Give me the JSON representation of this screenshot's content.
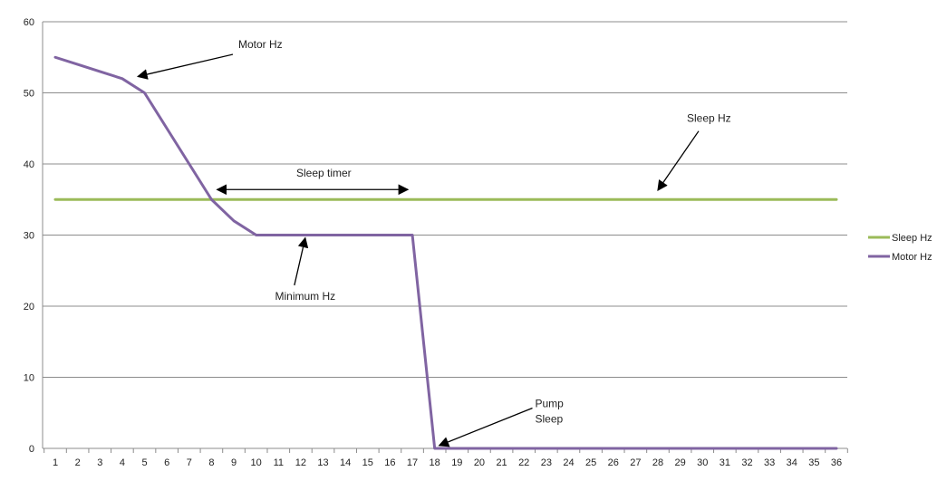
{
  "chart_data": {
    "type": "line",
    "title": "",
    "xlabel": "",
    "ylabel": "",
    "categories": [
      1,
      2,
      3,
      4,
      5,
      6,
      7,
      8,
      9,
      10,
      11,
      12,
      13,
      14,
      15,
      16,
      17,
      18,
      19,
      20,
      21,
      22,
      23,
      24,
      25,
      26,
      27,
      28,
      29,
      30,
      31,
      32,
      33,
      34,
      35,
      36
    ],
    "ylim": [
      0,
      60
    ],
    "yticks": [
      0,
      10,
      20,
      30,
      40,
      50,
      60
    ],
    "grid": "horizontal",
    "legend_position": "right",
    "series": [
      {
        "name": "Sleep Hz",
        "color": "#9bbb59",
        "values": [
          35,
          35,
          35,
          35,
          35,
          35,
          35,
          35,
          35,
          35,
          35,
          35,
          35,
          35,
          35,
          35,
          35,
          35,
          35,
          35,
          35,
          35,
          35,
          35,
          35,
          35,
          35,
          35,
          35,
          35,
          35,
          35,
          35,
          35,
          35,
          35
        ]
      },
      {
        "name": "Motor Hz",
        "color": "#8064a2",
        "values": [
          55,
          54,
          53,
          52,
          50,
          45,
          40,
          35,
          32,
          30,
          30,
          30,
          30,
          30,
          30,
          30,
          30,
          0,
          0,
          0,
          0,
          0,
          0,
          0,
          0,
          0,
          0,
          0,
          0,
          0,
          0,
          0,
          0,
          0,
          0,
          0
        ]
      }
    ],
    "annotations": [
      {
        "text": "Motor  Hz",
        "target_x": 4.7,
        "target_y": 52.3,
        "label_x": 9.2,
        "label_y": 56.3,
        "anchor": "start",
        "arrow": "single"
      },
      {
        "text": "Sleep Hz",
        "target_x": 28,
        "target_y": 36.3,
        "label_x": 29.3,
        "label_y": 45.9,
        "anchor": "start",
        "arrow": "single"
      },
      {
        "text": "Minimum Hz",
        "target_x": 12.2,
        "target_y": 29.6,
        "label_x": 12.2,
        "label_y": 20.9,
        "anchor": "middle",
        "arrow": "single"
      },
      {
        "text": "Pump",
        "text2": "Sleep",
        "target_x": 18.2,
        "target_y": 0.4,
        "label_x": 22.5,
        "label_y": 5.8,
        "anchor": "start",
        "arrow": "single"
      },
      {
        "text": "Sleep timer",
        "target_x": 8.25,
        "target_x2": 16.8,
        "target_y": 36.4,
        "label_x": 11.8,
        "label_y": 38.2,
        "anchor": "start",
        "arrow": "double"
      }
    ]
  }
}
